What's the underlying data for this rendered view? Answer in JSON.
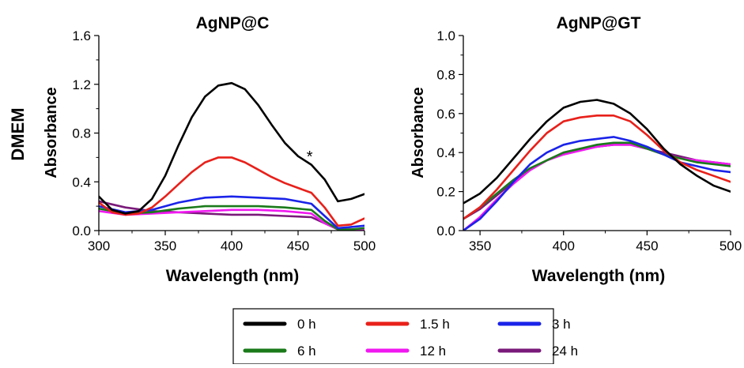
{
  "row_label": "DMEM",
  "legend": {
    "entries": [
      {
        "label": "0 h",
        "color": "#000000"
      },
      {
        "label": "1.5 h",
        "color": "#e8201a"
      },
      {
        "label": "3 h",
        "color": "#1a23e8"
      },
      {
        "label": "6 h",
        "color": "#1a7a1a"
      },
      {
        "label": "12 h",
        "color": "#f018f0"
      },
      {
        "label": "24 h",
        "color": "#7a1a7a"
      }
    ]
  },
  "chart_data": [
    {
      "type": "line",
      "title": "AgNP@C",
      "xlabel": "Wavelength (nm)",
      "ylabel": "Absorbance",
      "xlim": [
        300,
        500
      ],
      "ylim": [
        0,
        1.6
      ],
      "xticks": [
        "300",
        "350",
        "400",
        "450",
        "500"
      ],
      "yticks": [
        "0.0",
        "0.4",
        "0.8",
        "1.2",
        "1.6"
      ],
      "annotations": [
        {
          "text": "*",
          "x": 460,
          "y": 0.64
        }
      ],
      "series": [
        {
          "name": "0 h",
          "color": "#000000",
          "x": [
            300,
            310,
            320,
            330,
            340,
            350,
            360,
            370,
            380,
            390,
            400,
            410,
            420,
            430,
            440,
            450,
            460,
            470,
            480,
            490,
            500
          ],
          "y": [
            0.28,
            0.17,
            0.14,
            0.16,
            0.26,
            0.45,
            0.7,
            0.93,
            1.1,
            1.19,
            1.21,
            1.16,
            1.03,
            0.87,
            0.72,
            0.61,
            0.54,
            0.42,
            0.24,
            0.26,
            0.3
          ]
        },
        {
          "name": "1.5 h",
          "color": "#e8201a",
          "x": [
            300,
            310,
            320,
            330,
            340,
            350,
            360,
            370,
            380,
            390,
            400,
            410,
            420,
            430,
            440,
            450,
            460,
            470,
            480,
            490,
            500
          ],
          "y": [
            0.23,
            0.15,
            0.13,
            0.14,
            0.19,
            0.28,
            0.38,
            0.48,
            0.56,
            0.6,
            0.6,
            0.56,
            0.5,
            0.44,
            0.39,
            0.35,
            0.31,
            0.19,
            0.04,
            0.05,
            0.1
          ]
        },
        {
          "name": "3 h",
          "color": "#1a23e8",
          "x": [
            300,
            320,
            340,
            360,
            380,
            400,
            420,
            440,
            460,
            470,
            480,
            490,
            500
          ],
          "y": [
            0.2,
            0.15,
            0.17,
            0.23,
            0.27,
            0.28,
            0.27,
            0.26,
            0.22,
            0.12,
            0.02,
            0.03,
            0.04
          ]
        },
        {
          "name": "6 h",
          "color": "#1a7a1a",
          "x": [
            300,
            320,
            340,
            360,
            380,
            400,
            420,
            440,
            460,
            470,
            480,
            490,
            500
          ],
          "y": [
            0.18,
            0.14,
            0.15,
            0.18,
            0.2,
            0.2,
            0.2,
            0.19,
            0.17,
            0.08,
            0.01,
            0.01,
            0.02
          ]
        },
        {
          "name": "12 h",
          "color": "#f018f0",
          "x": [
            300,
            320,
            340,
            360,
            380,
            400,
            420,
            440,
            460,
            470,
            480,
            490,
            500
          ],
          "y": [
            0.16,
            0.13,
            0.14,
            0.15,
            0.16,
            0.17,
            0.17,
            0.16,
            0.14,
            0.06,
            0.01,
            0.01,
            0.01
          ]
        },
        {
          "name": "24 h",
          "color": "#7a1a7a",
          "x": [
            300,
            320,
            340,
            360,
            380,
            400,
            420,
            440,
            460,
            470,
            480,
            490,
            500
          ],
          "y": [
            0.24,
            0.19,
            0.16,
            0.15,
            0.14,
            0.13,
            0.13,
            0.12,
            0.11,
            0.06,
            0.01,
            0.01,
            0.01
          ]
        }
      ]
    },
    {
      "type": "line",
      "title": "AgNP@GT",
      "xlabel": "Wavelength (nm)",
      "ylabel": "Absorbance",
      "xlim": [
        340,
        500
      ],
      "ylim": [
        0,
        1.0
      ],
      "xticks": [
        "350",
        "400",
        "450",
        "500"
      ],
      "yticks": [
        "0.0",
        "0.2",
        "0.4",
        "0.6",
        "0.8",
        "1.0"
      ],
      "series": [
        {
          "name": "0 h",
          "color": "#000000",
          "x": [
            340,
            350,
            360,
            370,
            380,
            390,
            400,
            410,
            420,
            430,
            440,
            450,
            460,
            470,
            480,
            490,
            500
          ],
          "y": [
            0.14,
            0.19,
            0.27,
            0.37,
            0.47,
            0.56,
            0.63,
            0.66,
            0.67,
            0.65,
            0.6,
            0.52,
            0.42,
            0.34,
            0.28,
            0.23,
            0.2
          ]
        },
        {
          "name": "1.5 h",
          "color": "#e8201a",
          "x": [
            340,
            350,
            360,
            370,
            380,
            390,
            400,
            410,
            420,
            430,
            440,
            450,
            460,
            470,
            480,
            490,
            500
          ],
          "y": [
            0.06,
            0.12,
            0.21,
            0.31,
            0.41,
            0.5,
            0.56,
            0.58,
            0.59,
            0.59,
            0.56,
            0.49,
            0.41,
            0.35,
            0.31,
            0.28,
            0.25
          ]
        },
        {
          "name": "3 h",
          "color": "#1a23e8",
          "x": [
            340,
            350,
            360,
            370,
            380,
            390,
            400,
            410,
            420,
            430,
            440,
            450,
            460,
            470,
            480,
            490,
            500
          ],
          "y": [
            0.0,
            0.06,
            0.15,
            0.25,
            0.34,
            0.4,
            0.44,
            0.46,
            0.47,
            0.48,
            0.46,
            0.43,
            0.39,
            0.35,
            0.33,
            0.31,
            0.3
          ]
        },
        {
          "name": "6 h",
          "color": "#1a7a1a",
          "x": [
            340,
            350,
            360,
            370,
            380,
            390,
            400,
            410,
            420,
            430,
            440,
            450,
            460,
            470,
            480,
            490,
            500
          ],
          "y": [
            0.06,
            0.12,
            0.19,
            0.26,
            0.32,
            0.36,
            0.4,
            0.42,
            0.44,
            0.45,
            0.45,
            0.42,
            0.39,
            0.37,
            0.35,
            0.34,
            0.33
          ]
        },
        {
          "name": "12 h",
          "color": "#f018f0",
          "x": [
            340,
            350,
            360,
            370,
            380,
            390,
            400,
            410,
            420,
            430,
            440,
            450,
            460,
            470,
            480,
            490,
            500
          ],
          "y": [
            0.0,
            0.07,
            0.16,
            0.24,
            0.31,
            0.36,
            0.39,
            0.41,
            0.43,
            0.44,
            0.44,
            0.42,
            0.39,
            0.37,
            0.36,
            0.35,
            0.34
          ]
        },
        {
          "name": "24 h",
          "color": "#7a1a7a",
          "x": [
            340,
            350,
            360,
            370,
            380,
            390,
            400,
            410,
            420,
            430,
            440,
            450,
            460,
            470,
            480,
            490,
            500
          ],
          "y": [
            0.06,
            0.11,
            0.18,
            0.25,
            0.31,
            0.36,
            0.4,
            0.42,
            0.43,
            0.44,
            0.44,
            0.42,
            0.4,
            0.38,
            0.36,
            0.35,
            0.34
          ]
        }
      ]
    }
  ]
}
